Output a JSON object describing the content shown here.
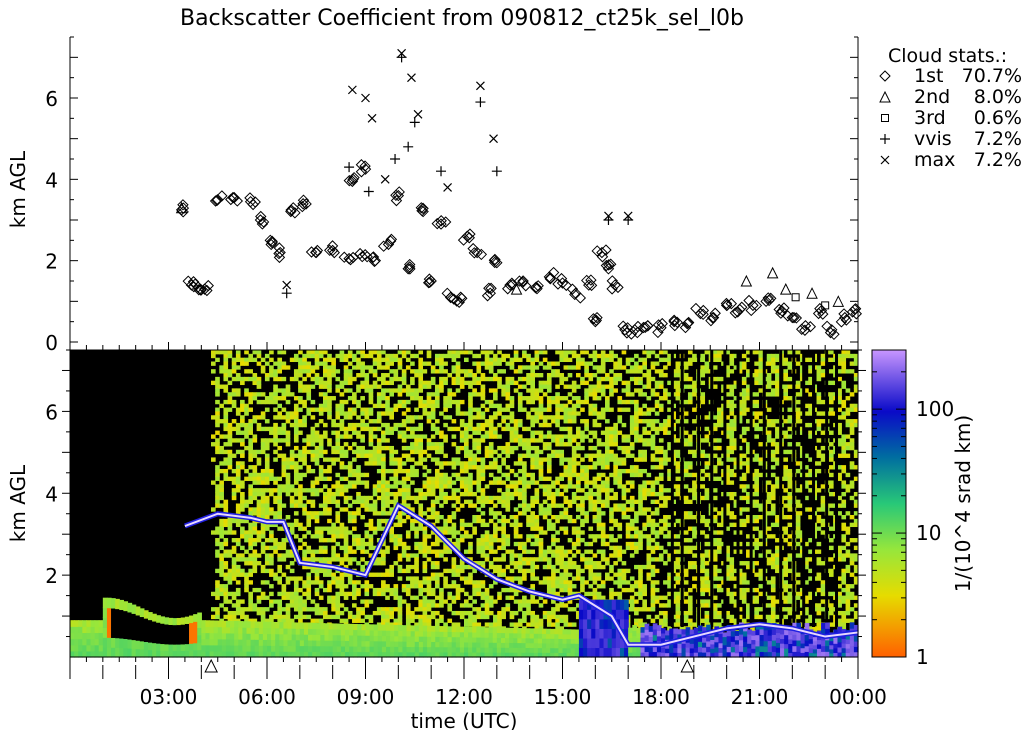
{
  "title": "Backscatter Coefficient from 090812_ct25k_sel_l0b",
  "chart_data": [
    {
      "type": "scatter",
      "ylabel": "km AGL",
      "ylim": [
        0,
        7.5
      ],
      "yticks": [
        "0",
        "2",
        "4",
        "6"
      ],
      "xlim_hours": [
        0,
        24
      ],
      "legend_title": "Cloud stats.:",
      "legend": [
        {
          "marker": "diamond",
          "label": "1st",
          "value": "70.7%"
        },
        {
          "marker": "triangle",
          "label": "2nd",
          "value": "8.0%"
        },
        {
          "marker": "square",
          "label": "3rd",
          "value": "0.6%"
        },
        {
          "marker": "plus",
          "label": "vvis",
          "value": "7.2%"
        },
        {
          "marker": "cross",
          "label": "max",
          "value": "7.2%"
        }
      ],
      "series": [
        {
          "name": "1st",
          "marker": "diamond",
          "points": [
            [
              3.4,
              3.25
            ],
            [
              3.7,
              1.4
            ],
            [
              3.9,
              1.35
            ],
            [
              4.1,
              1.3
            ],
            [
              4.5,
              3.5
            ],
            [
              5.0,
              3.55
            ],
            [
              5.5,
              3.45
            ],
            [
              5.8,
              3.0
            ],
            [
              6.1,
              2.5
            ],
            [
              6.4,
              2.2
            ],
            [
              6.8,
              3.3
            ],
            [
              7.1,
              3.4
            ],
            [
              7.5,
              2.2
            ],
            [
              8.0,
              2.25
            ],
            [
              8.5,
              2.05
            ],
            [
              8.9,
              2.1
            ],
            [
              8.6,
              3.95
            ],
            [
              9.0,
              4.25
            ],
            [
              9.3,
              2.0
            ],
            [
              9.7,
              2.4
            ],
            [
              10.0,
              3.6
            ],
            [
              10.3,
              1.8
            ],
            [
              10.7,
              3.3
            ],
            [
              11.0,
              1.5
            ],
            [
              11.3,
              2.9
            ],
            [
              11.6,
              1.1
            ],
            [
              11.9,
              1.1
            ],
            [
              12.1,
              2.6
            ],
            [
              12.4,
              2.2
            ],
            [
              12.8,
              1.2
            ],
            [
              13.0,
              1.95
            ],
            [
              13.4,
              1.4
            ],
            [
              13.8,
              1.5
            ],
            [
              14.2,
              1.35
            ],
            [
              14.6,
              1.6
            ],
            [
              15.0,
              1.45
            ],
            [
              15.4,
              1.2
            ],
            [
              15.8,
              1.4
            ],
            [
              16.0,
              0.5
            ],
            [
              16.2,
              2.2
            ],
            [
              16.4,
              1.8
            ],
            [
              16.6,
              1.4
            ],
            [
              16.9,
              0.3
            ],
            [
              17.2,
              0.3
            ],
            [
              17.6,
              0.4
            ],
            [
              18.0,
              0.35
            ],
            [
              18.4,
              0.5
            ],
            [
              18.8,
              0.45
            ],
            [
              19.2,
              0.7
            ],
            [
              19.6,
              0.6
            ],
            [
              20.0,
              0.9
            ],
            [
              20.4,
              0.8
            ],
            [
              20.8,
              0.9
            ],
            [
              21.2,
              1.0
            ],
            [
              21.6,
              0.8
            ],
            [
              22.0,
              0.6
            ],
            [
              22.4,
              0.4
            ],
            [
              22.8,
              0.7
            ],
            [
              23.2,
              0.3
            ],
            [
              23.6,
              0.6
            ],
            [
              23.9,
              0.8
            ]
          ]
        },
        {
          "name": "2nd",
          "marker": "triangle",
          "points": [
            [
              3.4,
              3.3
            ],
            [
              13.6,
              1.3
            ],
            [
              20.6,
              1.5
            ],
            [
              21.4,
              1.7
            ],
            [
              21.8,
              1.3
            ],
            [
              22.6,
              1.2
            ],
            [
              23.4,
              1.0
            ]
          ]
        },
        {
          "name": "3rd",
          "marker": "square",
          "points": [
            [
              22.1,
              1.1
            ],
            [
              23.0,
              0.9
            ]
          ]
        },
        {
          "name": "vvis",
          "marker": "plus",
          "points": [
            [
              6.6,
              1.2
            ],
            [
              8.5,
              4.3
            ],
            [
              9.1,
              3.7
            ],
            [
              9.9,
              4.5
            ],
            [
              10.1,
              7.0
            ],
            [
              10.3,
              4.8
            ],
            [
              10.5,
              5.4
            ],
            [
              11.3,
              4.2
            ],
            [
              12.5,
              5.9
            ],
            [
              13.0,
              4.2
            ],
            [
              16.4,
              3.0
            ],
            [
              17.0,
              3.0
            ]
          ]
        },
        {
          "name": "max",
          "marker": "cross",
          "points": [
            [
              6.6,
              1.4
            ],
            [
              8.6,
              6.2
            ],
            [
              9.0,
              6.0
            ],
            [
              9.2,
              5.5
            ],
            [
              9.6,
              4.0
            ],
            [
              10.1,
              7.1
            ],
            [
              10.4,
              6.5
            ],
            [
              10.6,
              5.6
            ],
            [
              11.5,
              3.8
            ],
            [
              12.5,
              6.3
            ],
            [
              12.9,
              5.0
            ],
            [
              16.4,
              3.1
            ],
            [
              17.0,
              3.1
            ]
          ]
        }
      ]
    },
    {
      "type": "heatmap",
      "ylabel": "km AGL",
      "ylim": [
        0,
        7.5
      ],
      "yticks": [
        "2",
        "4",
        "6"
      ],
      "xlabel": "time (UTC)",
      "xticks": [
        "03:00",
        "06:00",
        "09:00",
        "12:00",
        "15:00",
        "18:00",
        "21:00",
        "00:00"
      ],
      "xticks_hours": [
        3,
        6,
        9,
        12,
        15,
        18,
        21,
        24
      ],
      "event_markers_hours": [
        4.3,
        18.8
      ],
      "colorbar": {
        "label": "1/(10^4 srad km)",
        "scale": "log",
        "range": [
          1,
          300
        ],
        "ticks": [
          "1",
          "10",
          "100"
        ],
        "tick_values": [
          1,
          10,
          100
        ]
      },
      "cloud_base_km": [
        [
          3.5,
          3.2
        ],
        [
          4.5,
          3.5
        ],
        [
          5.5,
          3.4
        ],
        [
          6.0,
          3.3
        ],
        [
          6.5,
          3.3
        ],
        [
          7.0,
          2.3
        ],
        [
          8.0,
          2.2
        ],
        [
          9.0,
          2.0
        ],
        [
          10.0,
          3.7
        ],
        [
          11.0,
          3.2
        ],
        [
          11.5,
          2.8
        ],
        [
          12.0,
          2.4
        ],
        [
          13.0,
          1.9
        ],
        [
          14.0,
          1.6
        ],
        [
          15.0,
          1.4
        ],
        [
          15.5,
          1.5
        ],
        [
          16.5,
          1.0
        ],
        [
          17.0,
          0.3
        ],
        [
          18.0,
          0.3
        ],
        [
          19.0,
          0.5
        ],
        [
          20.0,
          0.7
        ],
        [
          21.0,
          0.8
        ],
        [
          22.0,
          0.7
        ],
        [
          23.0,
          0.5
        ],
        [
          24.0,
          0.6
        ]
      ]
    }
  ]
}
